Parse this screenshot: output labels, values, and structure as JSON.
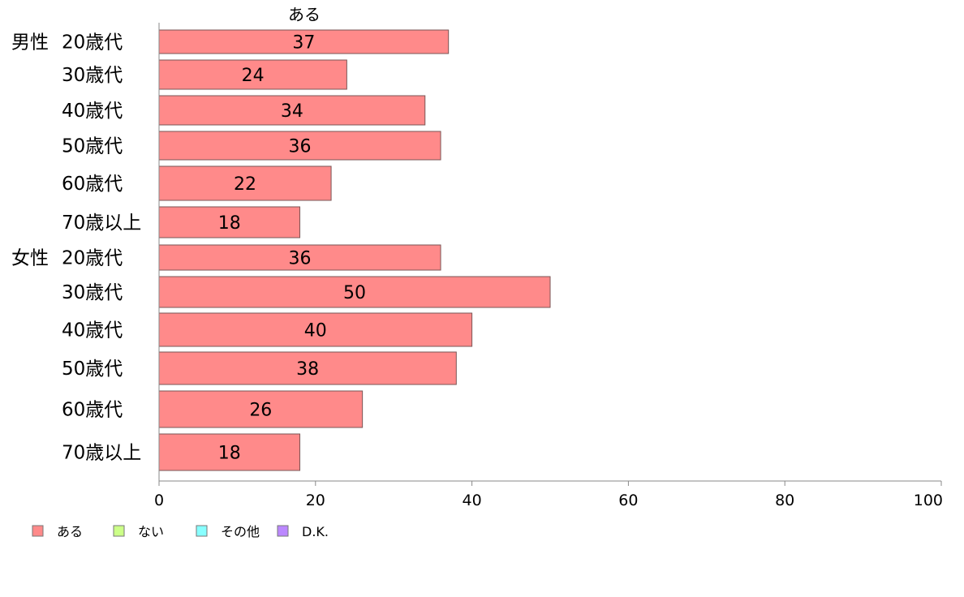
{
  "chart_data": {
    "type": "bar",
    "orientation": "horizontal",
    "title": "ある",
    "groups": [
      "男性",
      "女性"
    ],
    "categories": [
      {
        "group": "男性",
        "label": "20歳代"
      },
      {
        "group": "",
        "label": "30歳代"
      },
      {
        "group": "",
        "label": "40歳代"
      },
      {
        "group": "",
        "label": "50歳代"
      },
      {
        "group": "",
        "label": "60歳代"
      },
      {
        "group": "",
        "label": "70歳以上"
      },
      {
        "group": "女性",
        "label": "20歳代"
      },
      {
        "group": "",
        "label": "30歳代"
      },
      {
        "group": "",
        "label": "40歳代"
      },
      {
        "group": "",
        "label": "50歳代"
      },
      {
        "group": "",
        "label": "60歳代"
      },
      {
        "group": "",
        "label": "70歳以上"
      }
    ],
    "series": [
      {
        "name": "ある",
        "color": "#ff8a8a",
        "values": [
          37,
          24,
          34,
          36,
          22,
          18,
          36,
          50,
          40,
          38,
          26,
          18
        ]
      }
    ],
    "xlim": [
      0,
      100
    ],
    "xticks": [
      0,
      20,
      40,
      60,
      80,
      100
    ],
    "grid": false,
    "legend_position": "bottom-left",
    "legend": [
      {
        "label": "ある",
        "color": "#ff8a8a"
      },
      {
        "label": "ない",
        "color": "#ccff88"
      },
      {
        "label": "その他",
        "color": "#88ffff"
      },
      {
        "label": "D.K.",
        "color": "#bb88ff"
      }
    ]
  }
}
